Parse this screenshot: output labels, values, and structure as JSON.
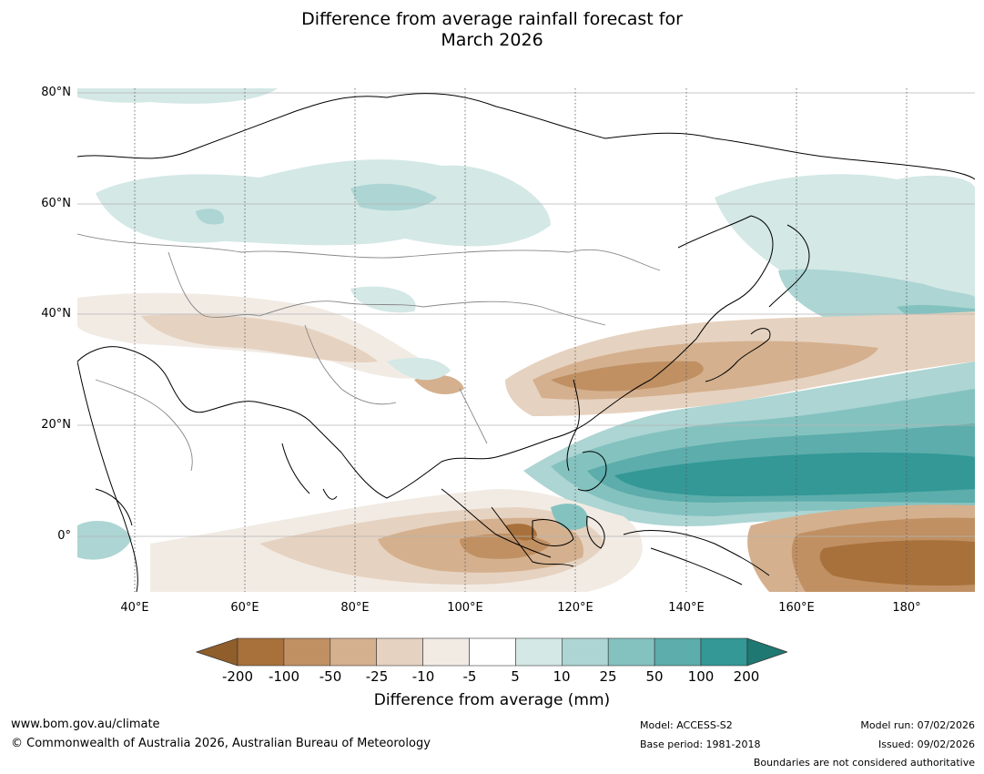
{
  "title_line1": "Difference from average rainfall forecast for",
  "title_line2": "March 2026",
  "map": {
    "lat_labels": [
      "80°N",
      "60°N",
      "40°N",
      "20°N",
      "0°"
    ],
    "lon_labels": [
      "40°E",
      "60°E",
      "80°E",
      "100°E",
      "120°E",
      "140°E",
      "160°E",
      "180°"
    ]
  },
  "colorbar": {
    "labels": [
      "-200",
      "-100",
      "-50",
      "-25",
      "-10",
      "-5",
      "5",
      "10",
      "25",
      "50",
      "100",
      "200"
    ],
    "colors": [
      "#8f5e2a",
      "#a8713b",
      "#c09063",
      "#d4b08e",
      "#e6d2c0",
      "#f1ebe4",
      "#ffffff",
      "#d4e8e6",
      "#acd5d3",
      "#84c2c0",
      "#5cadab",
      "#339896",
      "#1f7872"
    ],
    "title": "Difference from average (mm)"
  },
  "footer": {
    "url": "www.bom.gov.au/climate",
    "copyright": "© Commonwealth of Australia 2026, Australian Bureau of Meteorology",
    "model": "Model: ACCESS-S2",
    "base_period": "Base period: 1981-2018",
    "model_run": "Model run: 07/02/2026",
    "issued": "Issued: 09/02/2026",
    "disclaimer": "Boundaries are not considered authoritative"
  }
}
